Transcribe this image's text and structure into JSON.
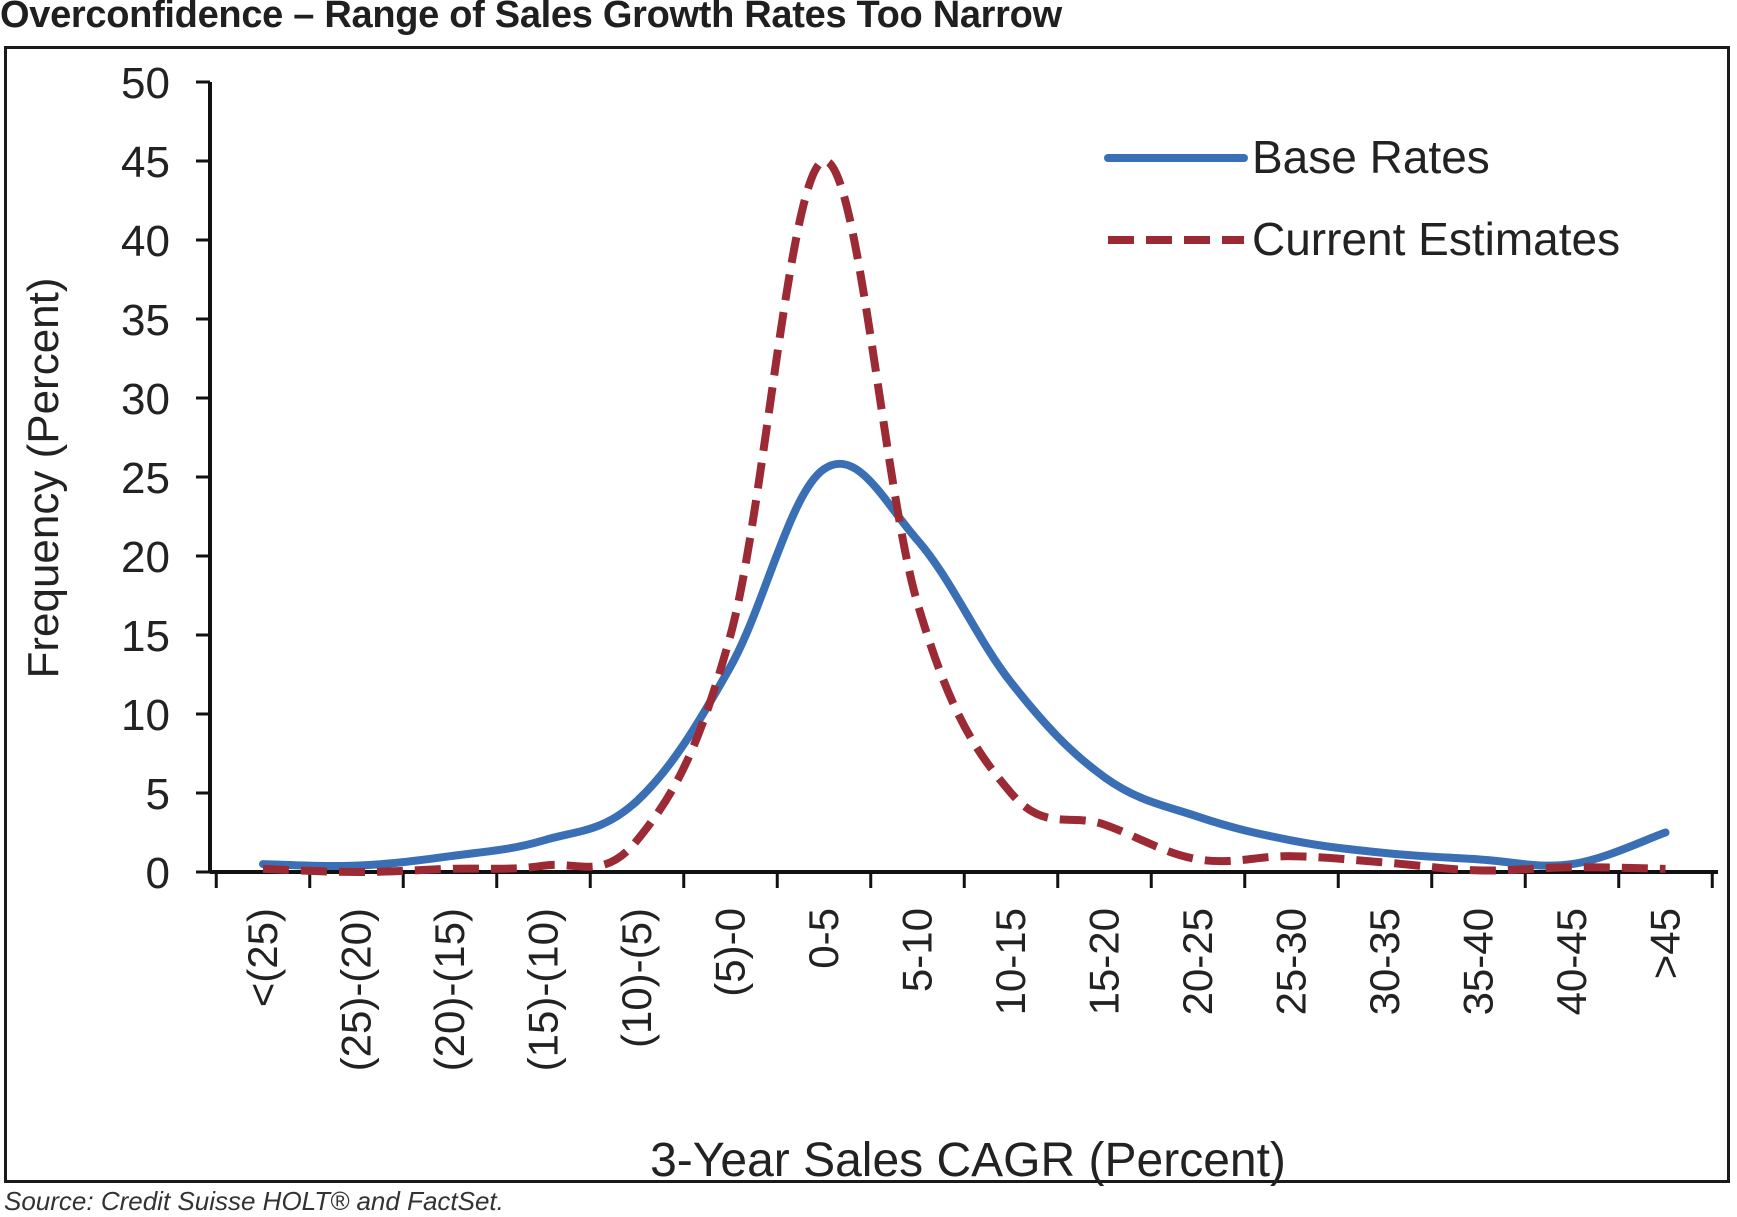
{
  "title": "Overconfidence – Range of Sales Growth Rates Too Narrow",
  "source": "Source: Credit Suisse HOLT® and FactSet.",
  "chart_data": {
    "type": "line",
    "title": "Overconfidence – Range of Sales Growth Rates Too Narrow",
    "xlabel": "3-Year Sales CAGR (Percent)",
    "ylabel": "Frequency (Percent)",
    "ylim": [
      0,
      50
    ],
    "yticks": [
      0,
      5,
      10,
      15,
      20,
      25,
      30,
      35,
      40,
      45,
      50
    ],
    "grid": false,
    "legend_position": "top-right",
    "categories": [
      "<(25)",
      "(25)-(20)",
      "(20)-(15)",
      "(15)-(10)",
      "(10)-(5)",
      "(5)-0",
      "0-5",
      "5-10",
      "10-15",
      "15-20",
      "20-25",
      "25-30",
      "30-35",
      "35-40",
      "40-45",
      ">45"
    ],
    "series": [
      {
        "name": "Base Rates",
        "color": "#3a6fb5",
        "style": "solid",
        "values": [
          0.5,
          0.4,
          1.0,
          2.0,
          4.5,
          13.0,
          25.5,
          21.0,
          12.0,
          6.0,
          3.5,
          2.0,
          1.2,
          0.8,
          0.5,
          2.5
        ]
      },
      {
        "name": "Current Estimates",
        "color": "#9b2a34",
        "style": "dashed",
        "values": [
          0.2,
          0.0,
          0.2,
          0.4,
          2.0,
          15.0,
          45.0,
          17.0,
          5.0,
          3.0,
          0.8,
          1.0,
          0.6,
          0.1,
          0.3,
          0.2
        ]
      }
    ]
  }
}
